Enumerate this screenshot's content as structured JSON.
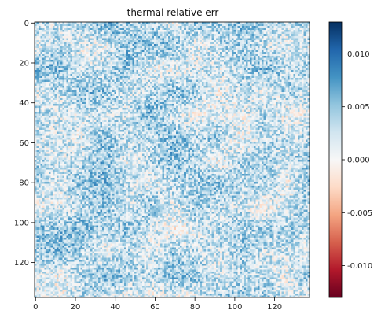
{
  "chart_data": {
    "type": "heatmap",
    "title": "thermal relative err",
    "xlabel": "",
    "ylabel": "",
    "rows": 138,
    "cols": 138,
    "x_ticks": [
      "0",
      "20",
      "40",
      "60",
      "80",
      "100",
      "120"
    ],
    "y_ticks": [
      "0",
      "20",
      "40",
      "60",
      "80",
      "100",
      "120"
    ],
    "x_tick_values": [
      0,
      20,
      40,
      60,
      80,
      100,
      120
    ],
    "y_tick_values": [
      0,
      20,
      40,
      60,
      80,
      100,
      120
    ],
    "colorbar": {
      "cmap": "RdBu",
      "vmin": -0.013,
      "vmax": 0.013,
      "ticks": [
        "-0.010",
        "-0.005",
        "0.000",
        "0.005",
        "0.010"
      ],
      "tick_values": [
        -0.01,
        -0.005,
        0.0,
        0.005,
        0.01
      ]
    },
    "value_mean": 0.003,
    "value_std": 0.0035,
    "colors": {
      "neg": "#67001f",
      "mid": "#f7f7f7",
      "pos": "#053061"
    }
  }
}
